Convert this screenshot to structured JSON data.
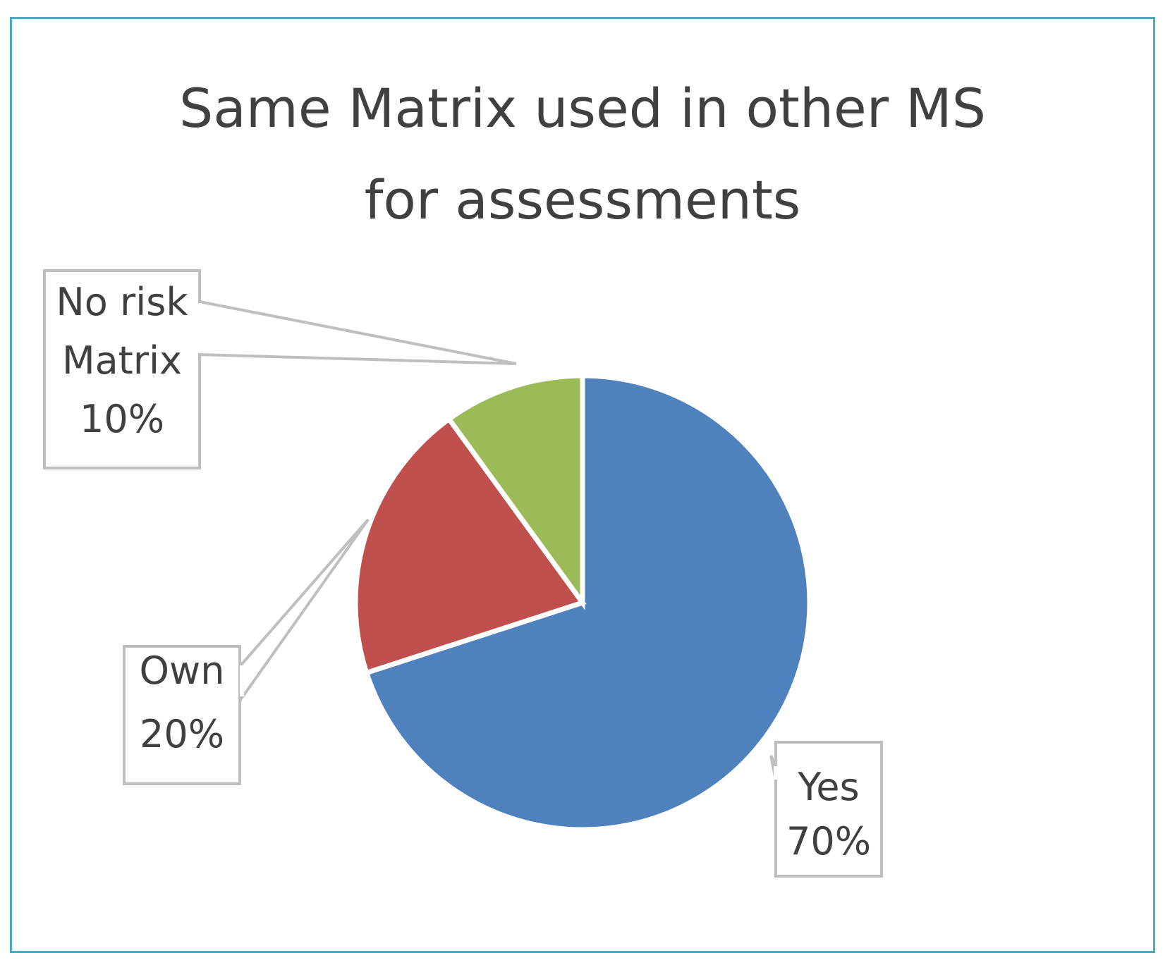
{
  "chart_data": {
    "type": "pie",
    "title": "Same Matrix used in other MS for assessments",
    "title_lines": [
      "Same Matrix used in other MS",
      "for assessments"
    ],
    "categories": [
      "Yes",
      "Own",
      "No risk Matrix"
    ],
    "values": [
      70,
      20,
      10
    ],
    "unit": "%",
    "colors": [
      "#4f81bd",
      "#c0504d",
      "#9bbb59"
    ],
    "data_labels": [
      {
        "lines": [
          "Yes",
          "70%"
        ]
      },
      {
        "lines": [
          "Own",
          "20%"
        ]
      },
      {
        "lines": [
          "No risk",
          "Matrix",
          "10%"
        ]
      }
    ],
    "start_angle": "12 o'clock",
    "direction": "clockwise",
    "legend": "none",
    "border_color": "#4bacc6"
  }
}
